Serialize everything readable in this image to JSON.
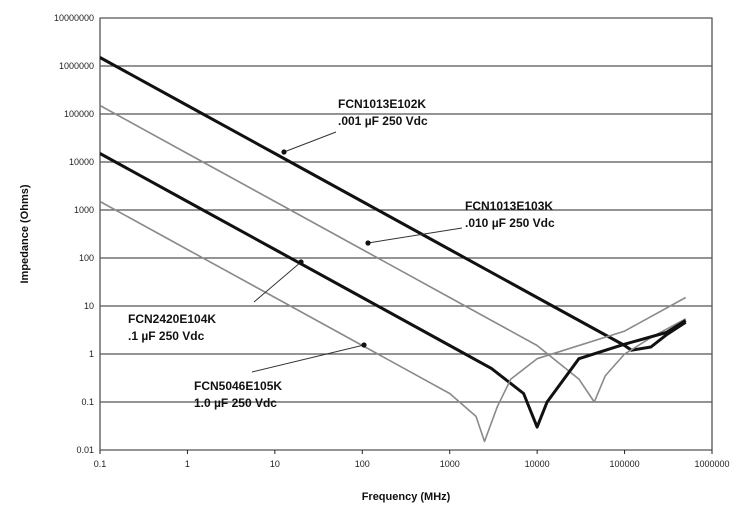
{
  "chart_data": {
    "type": "line",
    "xlabel": "Frequency (MHz)",
    "ylabel": "Impedance (Ohms)",
    "x_scale": "log",
    "y_scale": "log",
    "xlim": [
      0.1,
      1000000
    ],
    "ylim": [
      0.01,
      10000000
    ],
    "x_ticks": [
      "0.1",
      "1",
      "10",
      "100",
      "1000",
      "10000",
      "100000",
      "1000000"
    ],
    "y_ticks": [
      "10000000",
      "1000000",
      "100000",
      "10000",
      "1000",
      "100",
      "10",
      "1",
      "0.1",
      "0.01"
    ],
    "grid": "horizontal",
    "series": [
      {
        "part": "FCN1013E102K",
        "rating": ".001 µF 250 Vdc",
        "color": "#111111",
        "points": [
          [
            0.1,
            1500000
          ],
          [
            1,
            150000
          ],
          [
            10,
            15000
          ],
          [
            100,
            1500
          ],
          [
            1000,
            150
          ],
          [
            10000,
            15
          ],
          [
            100000,
            1.5
          ],
          [
            120000,
            1.2
          ],
          [
            200000,
            1.4
          ],
          [
            300000,
            2.5
          ],
          [
            500000,
            4.6
          ]
        ]
      },
      {
        "part": "FCN1013E103K",
        "rating": ".010 µF 250 Vdc",
        "color": "#8a8a8a",
        "points": [
          [
            0.1,
            150000
          ],
          [
            1,
            15000
          ],
          [
            10,
            1500
          ],
          [
            100,
            150
          ],
          [
            1000,
            15
          ],
          [
            10000,
            1.5
          ],
          [
            30000,
            0.3
          ],
          [
            45000,
            0.1
          ],
          [
            60000,
            0.35
          ],
          [
            100000,
            1.0
          ],
          [
            200000,
            2.2
          ],
          [
            500000,
            5.4
          ]
        ]
      },
      {
        "part": "FCN2420E104K",
        "rating": ".1 µF 250 Vdc",
        "color": "#111111",
        "points": [
          [
            0.1,
            15000
          ],
          [
            1,
            1500
          ],
          [
            10,
            150
          ],
          [
            100,
            15
          ],
          [
            1000,
            1.5
          ],
          [
            3000,
            0.5
          ],
          [
            7000,
            0.15
          ],
          [
            10000,
            0.03
          ],
          [
            13000,
            0.1
          ],
          [
            30000,
            0.8
          ],
          [
            100000,
            1.6
          ],
          [
            300000,
            2.8
          ],
          [
            500000,
            5.0
          ]
        ]
      },
      {
        "part": "FCN5046E105K",
        "rating": "1.0 µF 250 Vdc",
        "color": "#8a8a8a",
        "points": [
          [
            0.1,
            1500
          ],
          [
            1,
            150
          ],
          [
            10,
            15
          ],
          [
            100,
            1.5
          ],
          [
            1000,
            0.15
          ],
          [
            2000,
            0.05
          ],
          [
            2500,
            0.015
          ],
          [
            3500,
            0.08
          ],
          [
            5000,
            0.3
          ],
          [
            10000,
            0.8
          ],
          [
            100000,
            3.0
          ],
          [
            500000,
            15
          ]
        ]
      }
    ],
    "annotations": [
      {
        "line1": "FCN1013E102K",
        "line2": ".001 µF 250 Vdc",
        "target_series": 0
      },
      {
        "line1": "FCN1013E103K",
        "line2": ".010 µF 250 Vdc",
        "target_series": 1
      },
      {
        "line1": "FCN2420E104K",
        "line2": ".1 µF 250 Vdc",
        "target_series": 2
      },
      {
        "line1": "FCN5046E105K",
        "line2": "1.0 µF 250 Vdc",
        "target_series": 3
      }
    ]
  }
}
